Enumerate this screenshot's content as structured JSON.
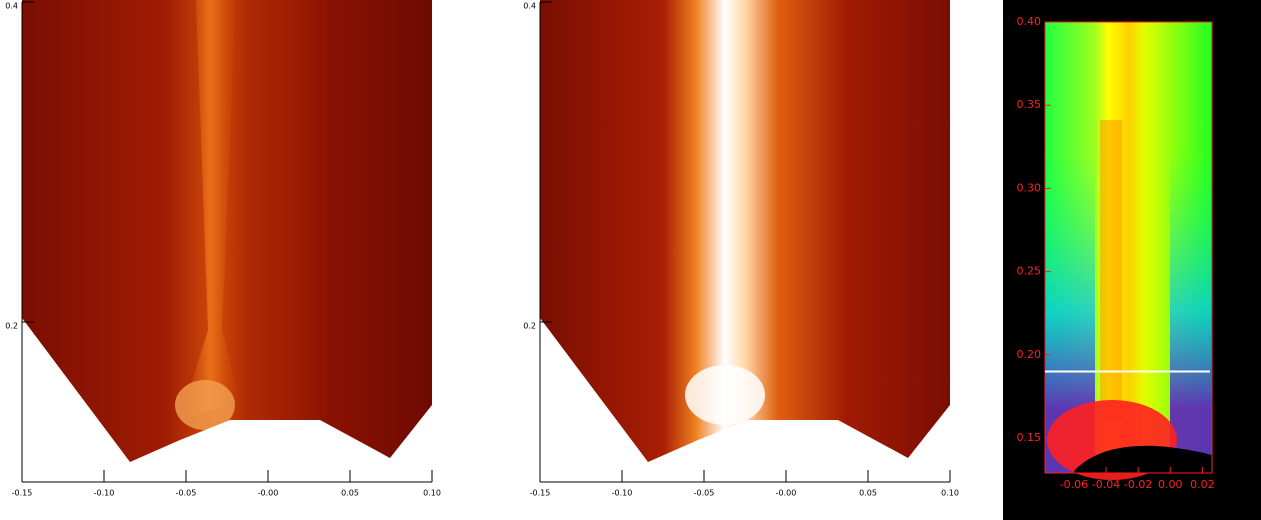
{
  "chart_data": [
    {
      "type": "heatmap",
      "xlim": [
        -0.15,
        0.1
      ],
      "ylim": [
        0.1,
        0.4
      ],
      "xticks": [
        -0.15,
        {
          "value": -0.1,
          "label": "-0.10"
        },
        -0.05,
        {
          "value": 0,
          "label": "-0.00"
        },
        0.05,
        {
          "value": 0.1,
          "label": "0.10"
        }
      ],
      "yticks": [
        0.2,
        0.4
      ],
      "tick_color": "#000000"
    },
    {
      "type": "heatmap",
      "xlim": [
        -0.15,
        0.1
      ],
      "ylim": [
        0.1,
        0.4
      ],
      "xticks": [
        -0.15,
        {
          "value": -0.1,
          "label": "-0.10"
        },
        -0.05,
        {
          "value": 0,
          "label": "-0.00"
        },
        0.05,
        {
          "value": 0.1,
          "label": "0.10"
        }
      ],
      "yticks": [
        0.2,
        0.4
      ],
      "tick_color": "#000000"
    },
    {
      "type": "heatmap",
      "xlim": [
        -0.078,
        0.026
      ],
      "ylim": [
        0.129,
        0.4
      ],
      "xticks": [
        -0.06,
        -0.04,
        -0.02,
        {
          "value": 0,
          "label": "0.00"
        },
        0.02
      ],
      "yticks": [
        0.15,
        {
          "value": 0.2,
          "label": "0.20"
        },
        0.25,
        {
          "value": 0.3,
          "label": "0.30"
        },
        0.35,
        {
          "value": 0.4,
          "label": "0.40"
        }
      ],
      "tick_color": "#ff2020",
      "hline": 0.19
    }
  ]
}
